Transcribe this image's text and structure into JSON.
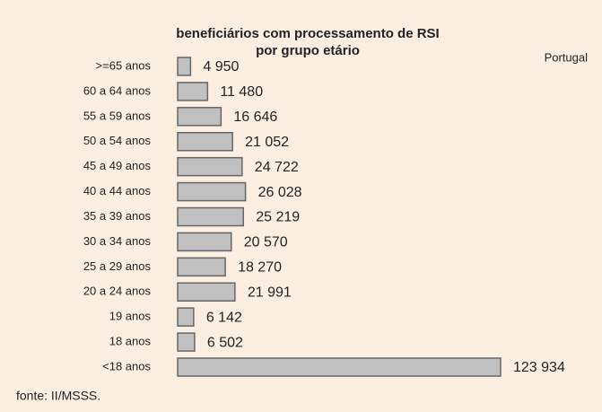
{
  "chart_data": {
    "type": "bar",
    "orientation": "horizontal",
    "title": "beneficiários com processamento de RSI",
    "subtitle": "por grupo etário",
    "legend_label": "Portugal",
    "source": "fonte: II/MSSS.",
    "categories": [
      ">=65 anos",
      "60 a 64 anos",
      "55 a 59 anos",
      "50 a 54 anos",
      "45 a 49 anos",
      "40 a 44 anos",
      "35 a 39 anos",
      "30 a 34 anos",
      "25 a 29 anos",
      "20 a 24 anos",
      "19 anos",
      "18 anos",
      "<18 anos"
    ],
    "values": [
      4950,
      11480,
      16646,
      21052,
      24722,
      26028,
      25219,
      20570,
      18270,
      21991,
      6142,
      6502,
      123934
    ],
    "value_labels": [
      "4 950",
      "11 480",
      "16 646",
      "21 052",
      "24 722",
      "26 028",
      "25 219",
      "20 570",
      "18 270",
      "21 991",
      "6 142",
      "6 502",
      "123 934"
    ],
    "color": "#c0c0c0"
  }
}
